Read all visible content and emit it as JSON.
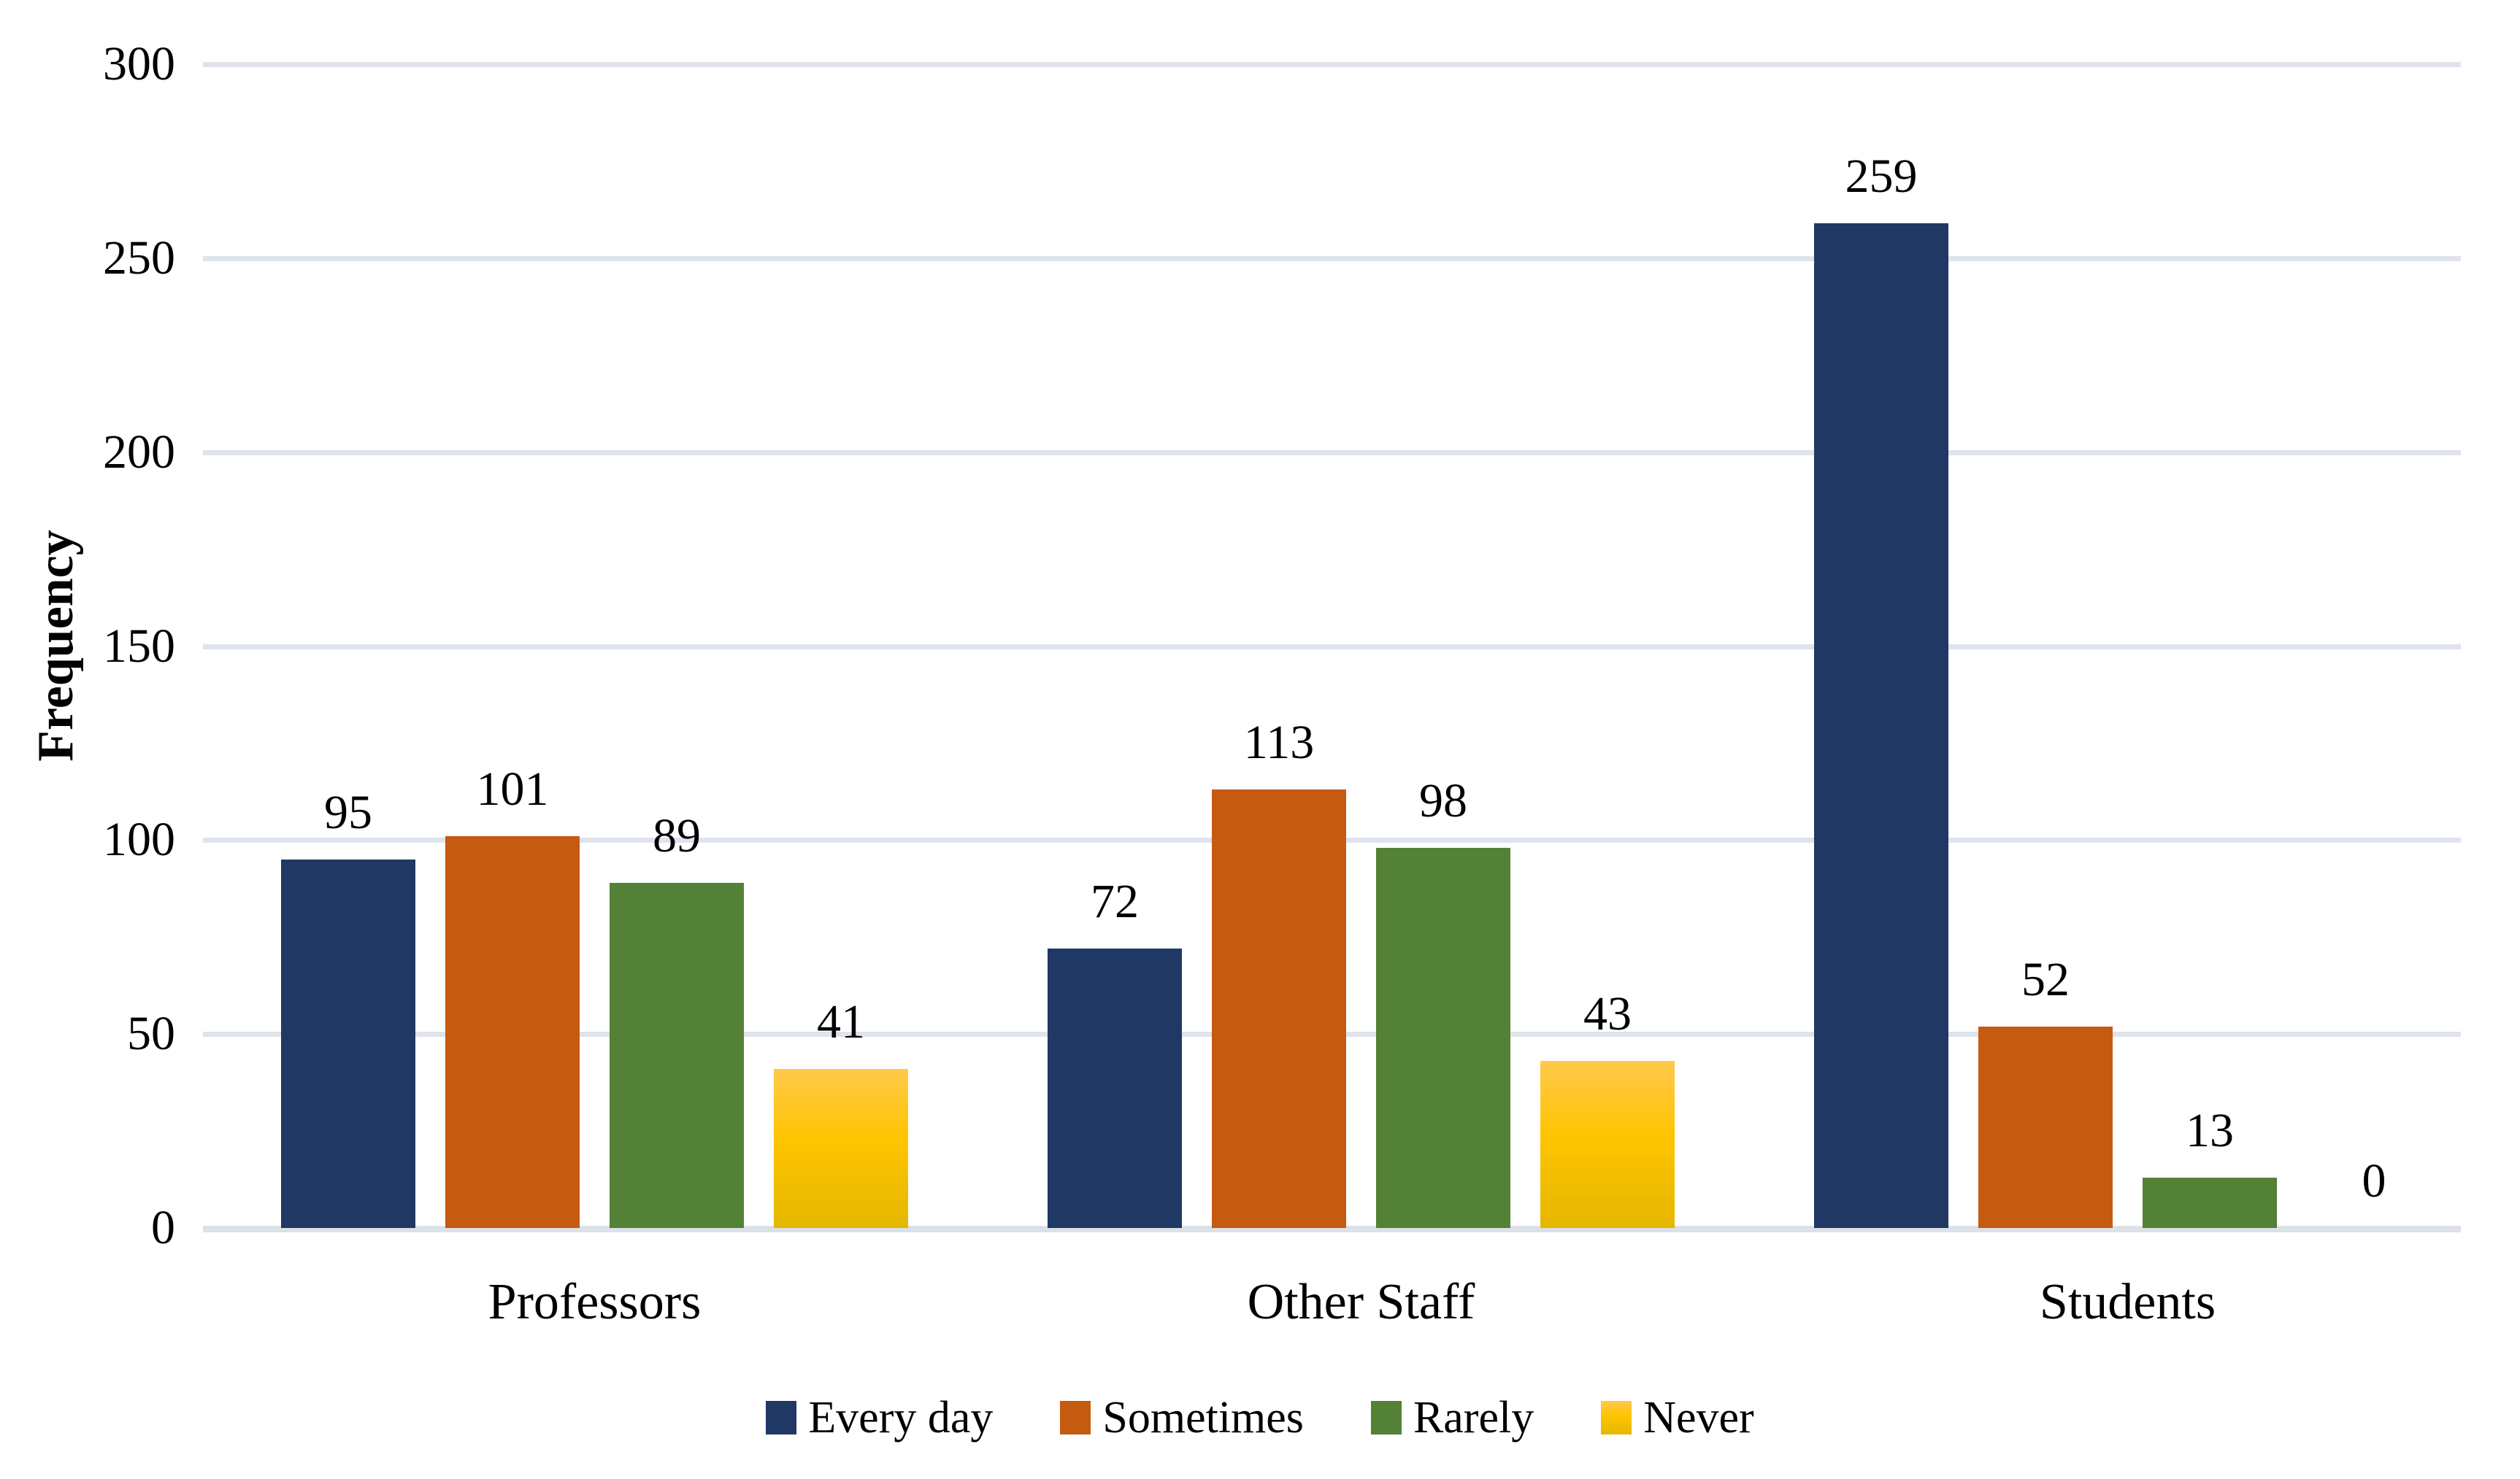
{
  "chart_data": {
    "type": "bar",
    "title": "",
    "categories": [
      "Professors",
      "Other Staff",
      "Students"
    ],
    "series": [
      {
        "name": "Every day",
        "color": "#1F3864",
        "values": [
          95,
          72,
          259
        ]
      },
      {
        "name": "Sometimes",
        "color": "#C55A11",
        "values": [
          101,
          113,
          52
        ]
      },
      {
        "name": "Rarely",
        "color": "#538135",
        "values": [
          89,
          98,
          13
        ]
      },
      {
        "name": "Never",
        "color": "#FFC400",
        "gradient_top": "#FFC94C",
        "gradient_bottom": "#E4B700",
        "values": [
          41,
          43,
          0
        ]
      }
    ],
    "ylabel": "Frequency",
    "xlabel": "",
    "yticks": [
      0,
      50,
      100,
      150,
      200,
      250,
      300
    ],
    "ylim": [
      0,
      300
    ],
    "grid": true,
    "legend_position": "bottom",
    "data_labels": true
  },
  "colors": {
    "background": "#FFFFFF",
    "gridline": "#DFE3EB",
    "baseline": "#DCE1E8",
    "text": "#000000"
  }
}
